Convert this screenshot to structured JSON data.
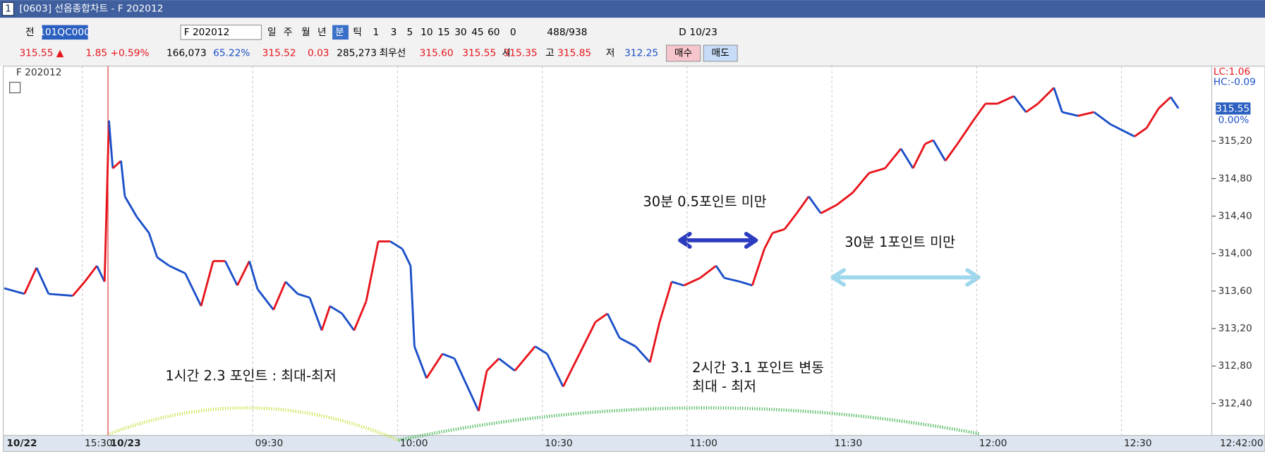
{
  "window": {
    "number": "1",
    "title": "[0603] 선옵종합차트 - F 202012"
  },
  "toolbar": {
    "prev": "전",
    "code": "101QC000",
    "symbol": "F 202012",
    "periods": [
      "일",
      "주",
      "월",
      "년",
      "분",
      "틱"
    ],
    "intervals": [
      "1",
      "3",
      "5",
      "10",
      "15",
      "30",
      "45",
      "60"
    ],
    "offset": "0",
    "count": "488/938",
    "day_flag": "D",
    "date": "10/23"
  },
  "quote_bar": {
    "price": "315.55 ▲",
    "change": "1.85",
    "change_pct": "+0.59%",
    "volume": "166,073",
    "ratio": "65.22%",
    "prev": "315.52",
    "prev_change": "0.03",
    "open_interest": "285,273",
    "best_label": "최우선",
    "best_ask": "315.60",
    "best_bid": "315.55",
    "open_label": "시",
    "open": "315.35",
    "high_label": "고",
    "high": "315.85",
    "low_label": "저",
    "low": "312.25",
    "buy": "매수",
    "sell": "매도"
  },
  "chart_panel": {
    "lc": "LC:1.06",
    "hc": "HC:-0.09",
    "last_price": "315.55",
    "last_pct": "0.00%",
    "clock": "12:42:00"
  },
  "chart_data": {
    "type": "line",
    "x": [
      -21.5,
      -17.3,
      -14.8,
      -12.3,
      -7.3,
      -4.8,
      -2.3,
      -0.7,
      0.2,
      1,
      2.7,
      3.5,
      6,
      8.5,
      10.2,
      12.7,
      16,
      19.3,
      21.8,
      24.3,
      26.8,
      29.3,
      31,
      34.3,
      36.8,
      39.3,
      41.8,
      44.3,
      46,
      48.5,
      51,
      53.5,
      56,
      58.5,
      61,
      62.7,
      63.5,
      66,
      69.3,
      71.8,
      75.2,
      76.8,
      78.5,
      81,
      84.3,
      88.5,
      91,
      94.3,
      97.7,
      101,
      103.5,
      106,
      109.3,
      112.3,
      114.3,
      116.8,
      119.3,
      122.7,
      126,
      127.7,
      131,
      133.5,
      136,
      137.7,
      140.2,
      142.7,
      145.2,
      147.7,
      151,
      154.3,
      157.7,
      161,
      164.3,
      166.8,
      169.3,
      171,
      173.5,
      176,
      179.3,
      181.8,
      184.3,
      187.7,
      190.2,
      192.7,
      196,
      197.7,
      201,
      204.3,
      207.7,
      212.7,
      215.2,
      217.7,
      220.2,
      221.8
    ],
    "series": [
      {
        "name": "F 202012",
        "color": "#e8141c",
        "down_color": "#1a4fc8",
        "values": [
          313.63,
          313.57,
          313.85,
          313.57,
          313.55,
          313.7,
          313.87,
          313.7,
          315.42,
          314.91,
          314.99,
          314.61,
          314.39,
          314.22,
          313.96,
          313.87,
          313.79,
          313.44,
          313.92,
          313.92,
          313.66,
          313.92,
          313.62,
          313.4,
          313.7,
          313.57,
          313.53,
          313.18,
          313.44,
          313.36,
          313.18,
          313.49,
          314.13,
          314.13,
          314.05,
          313.87,
          313.01,
          312.67,
          312.93,
          312.88,
          312.5,
          312.32,
          312.75,
          312.88,
          312.75,
          313.01,
          312.93,
          312.58,
          312.93,
          313.27,
          313.36,
          313.1,
          313.01,
          312.84,
          313.27,
          313.7,
          313.66,
          313.74,
          313.87,
          313.74,
          313.7,
          313.66,
          314.05,
          314.22,
          314.26,
          314.43,
          314.61,
          314.43,
          314.52,
          314.65,
          314.86,
          314.91,
          315.12,
          314.91,
          315.17,
          315.21,
          314.99,
          315.17,
          315.42,
          315.6,
          315.6,
          315.68,
          315.51,
          315.6,
          315.77,
          315.51,
          315.47,
          315.51,
          315.38,
          315.25,
          315.34,
          315.55,
          315.67,
          315.55
        ]
      }
    ],
    "xlim": [
      -21.7,
      228.7
    ],
    "ylim": [
      312.06,
      316.0
    ],
    "xticks": [
      {
        "value": -21.5,
        "label": "10/22"
      },
      {
        "value": -5.33,
        "label": "15:30"
      },
      {
        "value": 0,
        "label": "10/23"
      },
      {
        "value": 30,
        "label": "09:30"
      },
      {
        "value": 60,
        "label": "10:00"
      },
      {
        "value": 90,
        "label": "10:30"
      },
      {
        "value": 120,
        "label": "11:00"
      },
      {
        "value": 150,
        "label": "11:30"
      },
      {
        "value": 180,
        "label": "12:00"
      },
      {
        "value": 210,
        "label": "12:30"
      }
    ],
    "yticks": [
      {
        "value": 312.4,
        "label": "312,40"
      },
      {
        "value": 312.8,
        "label": "312,80"
      },
      {
        "value": 313.2,
        "label": "313,20"
      },
      {
        "value": 313.6,
        "label": "313,60"
      },
      {
        "value": 314.0,
        "label": "314,00"
      },
      {
        "value": 314.4,
        "label": "314,40"
      },
      {
        "value": 314.8,
        "label": "314,80"
      },
      {
        "value": 315.2,
        "label": "315,20"
      }
    ],
    "annotations": [
      "30분 0.5포인트 미만",
      "30분 1포인트 미만",
      "1시간 2.3 포인트 : 최대-최저",
      "2시간 3.1 포인트 변동",
      "최대 - 최저"
    ]
  }
}
